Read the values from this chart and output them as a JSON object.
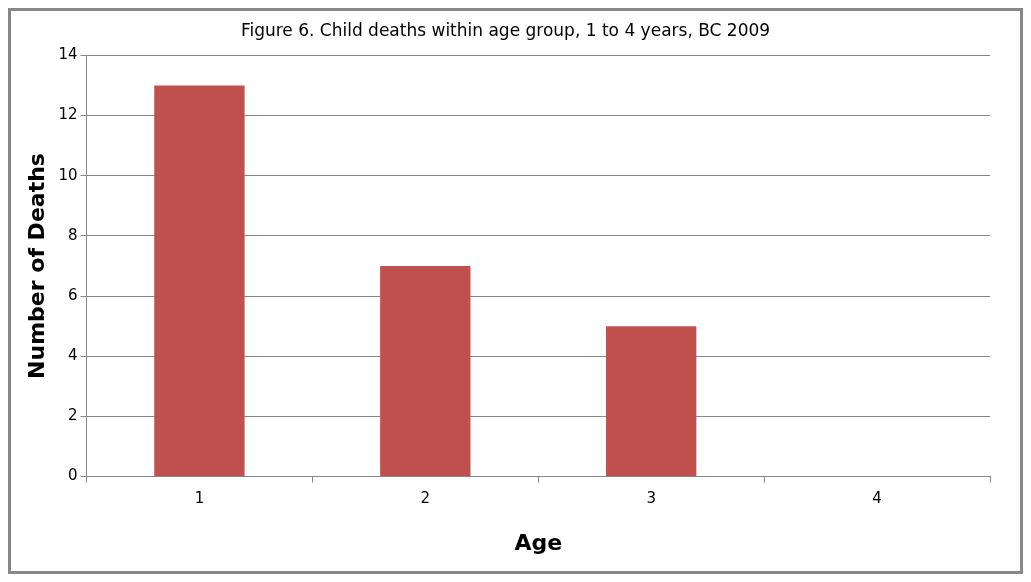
{
  "chart_data": {
    "type": "bar",
    "title": "Figure 6. Child deaths within age group, 1 to 4 years, BC 2009",
    "xlabel": "Age",
    "ylabel": "Number of Deaths",
    "categories": [
      "1",
      "2",
      "3",
      "4"
    ],
    "values": [
      13,
      7,
      5,
      0
    ],
    "color": "#c0504d",
    "ylim": [
      0,
      14
    ],
    "yticks": [
      0,
      2,
      4,
      6,
      8,
      10,
      12,
      14
    ],
    "grid": "y",
    "legend": false
  }
}
